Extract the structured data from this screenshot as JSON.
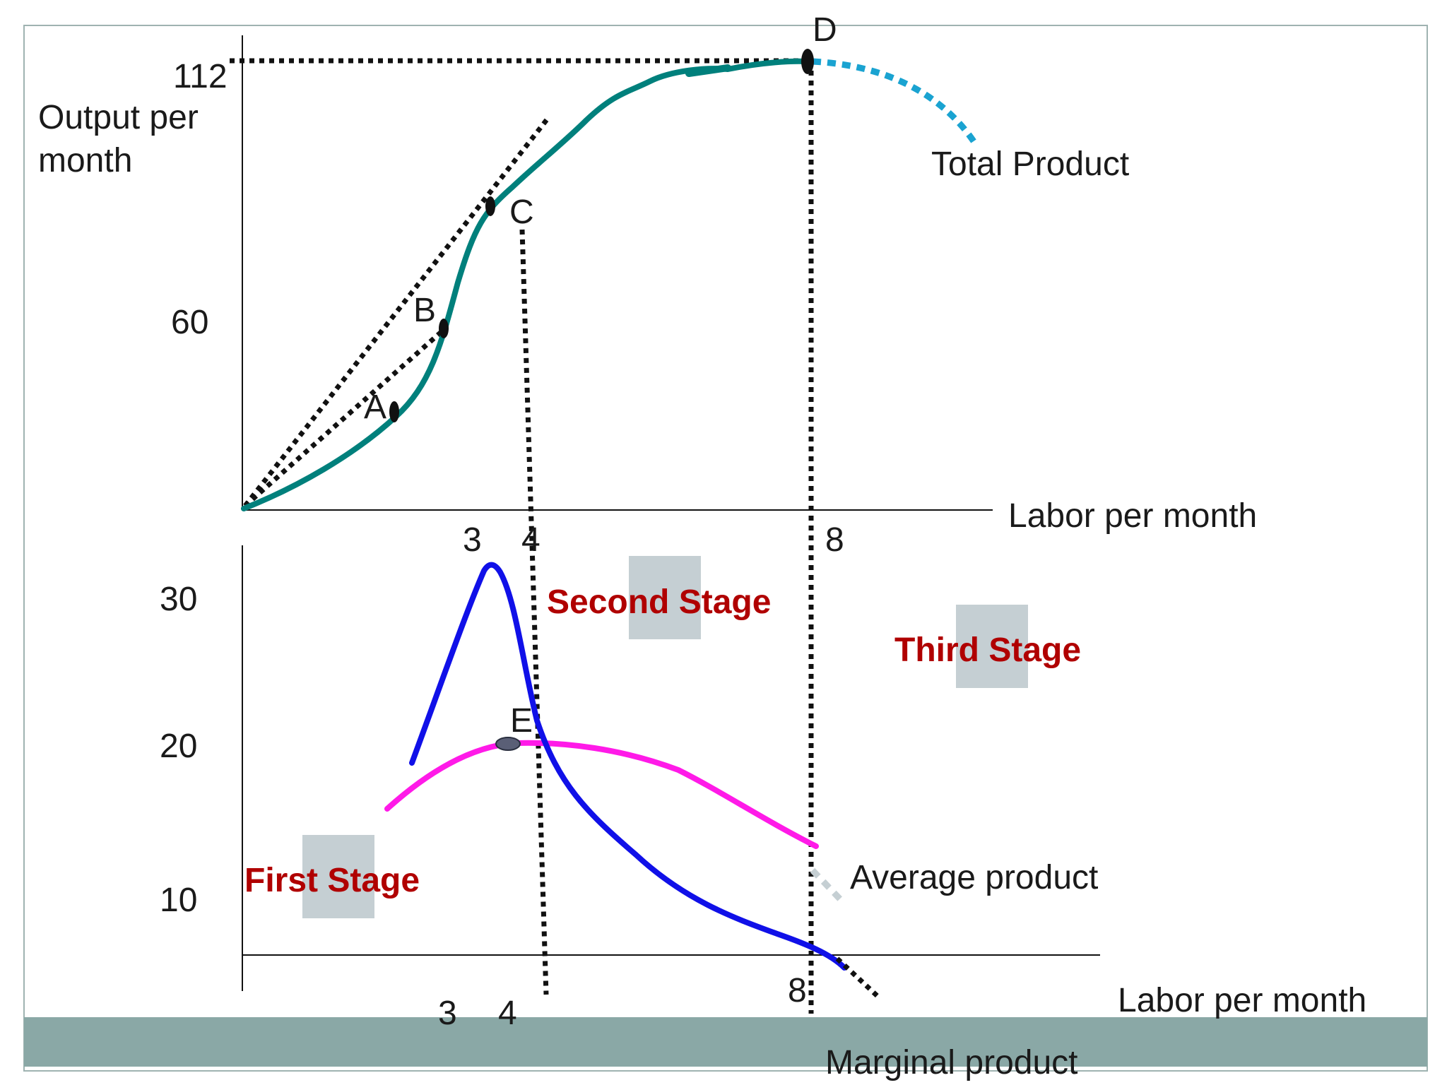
{
  "colors": {
    "total_product": "#00807c",
    "total_product_ext": "#1aa3d1",
    "marginal_product": "#1010e8",
    "average_product": "#ff1ae8",
    "stage_text": "#b00000",
    "stage_box": "#c5cfd3",
    "bottom_band": "#8aa8a6",
    "guide": "#111111",
    "axis": "#111111"
  },
  "top": {
    "y_label": [
      "Output per",
      "month"
    ],
    "x_label": "Labor per month",
    "y_ticks": [
      "112",
      "60"
    ],
    "x_ticks": [
      "3",
      "4",
      "8"
    ],
    "curve_label": "Total Product",
    "points": [
      "A",
      "B",
      "C",
      "D"
    ]
  },
  "bottom": {
    "x_label": "Labor per month",
    "y_ticks": [
      "30",
      "20",
      "10"
    ],
    "x_ticks": [
      "3",
      "4",
      "8"
    ],
    "average_label": "Average product",
    "marginal_label": "Marginal product",
    "point": "E",
    "stages": [
      "First Stage",
      "Second Stage",
      "Third Stage"
    ]
  }
}
